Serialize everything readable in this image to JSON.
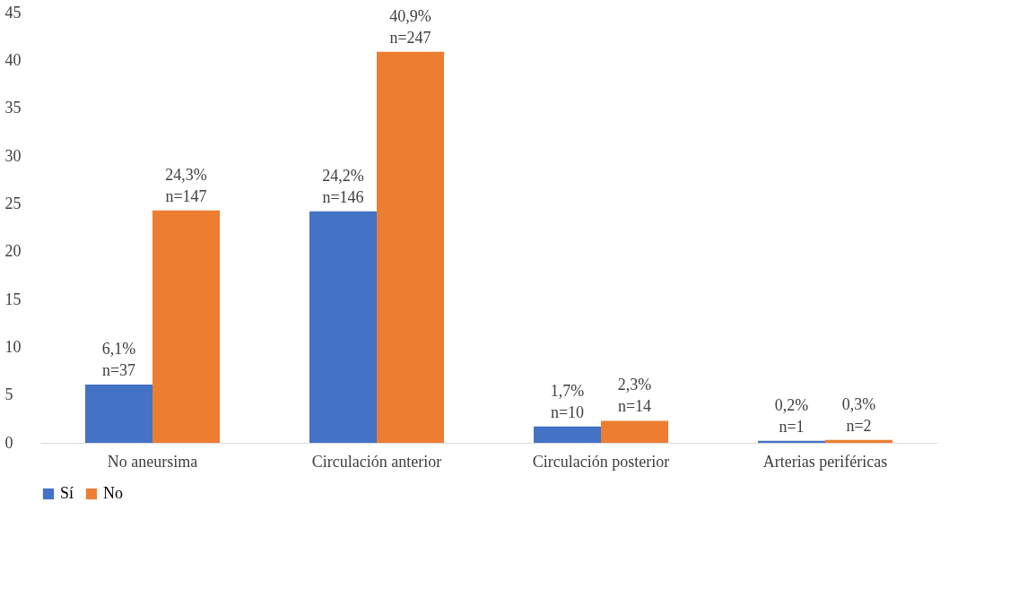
{
  "chart_data": {
    "type": "bar",
    "categories": [
      "No aneursima",
      "Circulación anterior",
      "Circulación posterior",
      "Arterias periféricas"
    ],
    "series": [
      {
        "name": "Sí",
        "color": "#4472c4",
        "values": [
          6.1,
          24.2,
          1.7,
          0.2
        ],
        "value_labels": [
          "6,1%\nn=37",
          "24,2%\nn=146",
          "1,7%\nn=10",
          "0,2%\nn=1"
        ]
      },
      {
        "name": "No",
        "color": "#ed7d31",
        "values": [
          24.3,
          40.9,
          2.3,
          0.3
        ],
        "value_labels": [
          "24,3%\nn=147",
          "40,9%\nn=247",
          "2,3%\nn=14",
          "0,3%\nn=2"
        ]
      }
    ],
    "ylim": [
      0,
      45
    ],
    "yticks": [
      0,
      5,
      10,
      15,
      20,
      25,
      30,
      35,
      40,
      45
    ],
    "grid": false,
    "legend": "bottom"
  }
}
